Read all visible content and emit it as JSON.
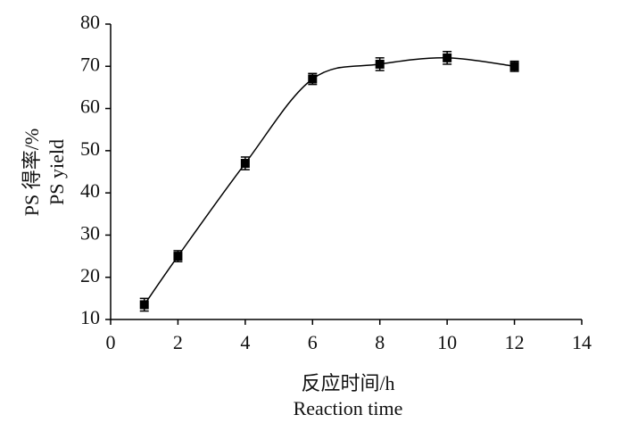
{
  "chart_data": {
    "type": "scatter",
    "xlabel": [
      "反应时间/h",
      "Reaction time"
    ],
    "ylabel": [
      "PS 得率/%",
      "PS yield"
    ],
    "series": [
      {
        "color": "#000000",
        "x": [
          1,
          2,
          4,
          6,
          8,
          10,
          12
        ],
        "values": [
          13.5,
          25,
          47,
          67,
          70.5,
          72,
          70
        ],
        "errors": [
          1.5,
          1.3,
          1.5,
          1.3,
          1.5,
          1.5,
          1.2
        ]
      }
    ],
    "smooth_curve": true,
    "xlim": [
      0,
      14
    ],
    "xticks": [
      0,
      2,
      4,
      6,
      8,
      10,
      12,
      14
    ],
    "ylim": [
      10,
      80
    ],
    "yticks": [
      10,
      20,
      30,
      40,
      50,
      60,
      70,
      80
    ]
  }
}
